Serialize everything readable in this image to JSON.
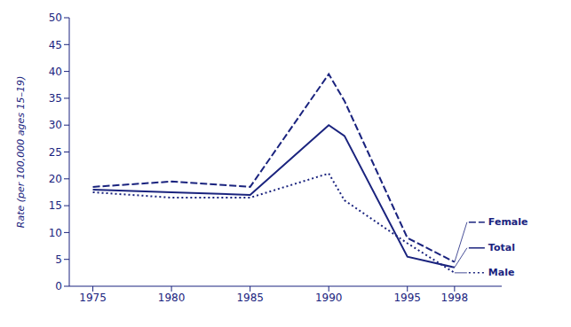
{
  "chart_data": {
    "type": "line",
    "ylabel": "Rate (per 100,000 ages 15–19)",
    "x": [
      1975,
      1980,
      1985,
      1990,
      1991,
      1995,
      1998
    ],
    "series": [
      {
        "name": "Female",
        "values": [
          18.5,
          19.5,
          18.5,
          39.5,
          34.5,
          9.0,
          4.5
        ],
        "line_style": "dashed"
      },
      {
        "name": "Total",
        "values": [
          18.0,
          17.5,
          17.0,
          30.0,
          28.0,
          5.5,
          3.5
        ],
        "line_style": "solid"
      },
      {
        "name": "Male",
        "values": [
          17.5,
          16.5,
          16.5,
          21.0,
          16.0,
          8.0,
          2.5
        ],
        "line_style": "dotted"
      }
    ],
    "color": "#1a237e",
    "xlim": [
      1973.5,
      2001.0
    ],
    "xticks": [
      1975,
      1980,
      1985,
      1990,
      1995,
      1998
    ],
    "ylim": [
      0,
      50
    ],
    "yticks": [
      0,
      5,
      10,
      15,
      20,
      25,
      30,
      35,
      40,
      45,
      50
    ],
    "grid": false
  }
}
